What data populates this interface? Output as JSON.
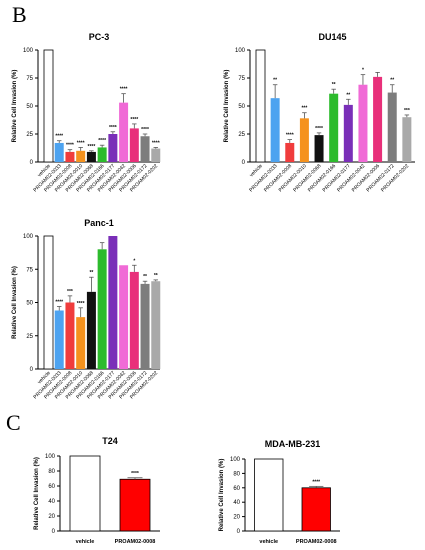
{
  "panel_labels": [
    "B",
    "C"
  ],
  "chart_data": [
    {
      "type": "bar",
      "title": "PC-3",
      "ylabel": "Relative Cell Invasion (%)",
      "ylim": [
        0,
        100
      ],
      "yticks": [
        0,
        25,
        50,
        75,
        100
      ],
      "categories": [
        "vehicle",
        "PROAM02-0033",
        "PROAM02-0008",
        "PROAM02-0010",
        "PROAM02-0068",
        "PROAM02-0166",
        "PROAM02-0177",
        "PROAM02-0042",
        "PROAM02-0006",
        "PROAM02-0172",
        "PROAM02-0202"
      ],
      "values": [
        100,
        17,
        9,
        10,
        9,
        13,
        25,
        53,
        30,
        23,
        12
      ],
      "errors": [
        0,
        2,
        2,
        3,
        1,
        2,
        2,
        8,
        4,
        2,
        1
      ],
      "significance": [
        "",
        "****",
        "****",
        "****",
        "****",
        "****",
        "****",
        "****",
        "****",
        "****",
        "****"
      ],
      "colors": [
        "#ffffff",
        "#4da3f0",
        "#f03c3c",
        "#f5921e",
        "#111111",
        "#2dbb2d",
        "#7a2fb8",
        "#f06ad6",
        "#e8307a",
        "#7d7d7d",
        "#a9a9a9"
      ]
    },
    {
      "type": "bar",
      "title": "DU145",
      "ylabel": "Relative Cell Invasion (%)",
      "ylim": [
        0,
        100
      ],
      "yticks": [
        0,
        25,
        50,
        75,
        100
      ],
      "categories": [
        "vehicle",
        "PROAM02-0033",
        "PROAM02-0008",
        "PROAM02-0010",
        "PROAM02-0068",
        "PROAM02-0166",
        "PROAM02-0177",
        "PROAM02-0042",
        "PROAM02-0006",
        "PROAM02-0172",
        "PROAM02-0202"
      ],
      "values": [
        100,
        57,
        17,
        39,
        24,
        61,
        51,
        69,
        76,
        62,
        40
      ],
      "errors": [
        0,
        12,
        3,
        5,
        2,
        4,
        5,
        9,
        4,
        7,
        2
      ],
      "significance": [
        "",
        "**",
        "****",
        "***",
        "****",
        "**",
        "**",
        "*",
        "",
        "**",
        "***"
      ],
      "colors": [
        "#ffffff",
        "#4da3f0",
        "#f03c3c",
        "#f5921e",
        "#111111",
        "#2dbb2d",
        "#7a2fb8",
        "#f06ad6",
        "#e8307a",
        "#7d7d7d",
        "#a9a9a9"
      ]
    },
    {
      "type": "bar",
      "title": "Panc-1",
      "ylabel": "Relative Cell Invasion (%)",
      "ylim": [
        0,
        100
      ],
      "yticks": [
        0,
        25,
        50,
        75,
        100
      ],
      "categories": [
        "vehicle",
        "PROAM02-0033",
        "PROAM02-0008",
        "PROAM02-0010",
        "PROAM02-0068",
        "PROAM02-0166",
        "PROAM02-0177",
        "PROAM02-0042",
        "PROAM02-0006",
        "PROAM02-0172",
        "PROAM02-0202"
      ],
      "values": [
        100,
        44,
        50,
        39,
        58,
        90,
        100,
        78,
        73,
        64,
        66
      ],
      "errors": [
        0,
        3,
        5,
        7,
        11,
        5,
        0,
        0,
        5,
        2,
        1
      ],
      "significance": [
        "",
        "****",
        "***",
        "****",
        "**",
        "",
        "",
        "",
        "*",
        "**",
        "**"
      ],
      "colors": [
        "#ffffff",
        "#4da3f0",
        "#f03c3c",
        "#f5921e",
        "#111111",
        "#2dbb2d",
        "#7a2fb8",
        "#f06ad6",
        "#e8307a",
        "#7d7d7d",
        "#a9a9a9"
      ]
    },
    {
      "type": "bar",
      "title": "T24",
      "ylabel": "Relative Cell Invasion (%)",
      "ylim": [
        0,
        100
      ],
      "yticks": [
        0,
        20,
        40,
        60,
        80,
        100
      ],
      "categories": [
        "vehicle",
        "PROAM02-0008"
      ],
      "values": [
        100,
        69
      ],
      "errors": [
        0,
        2
      ],
      "significance": [
        "",
        "****"
      ],
      "colors": [
        "#ffffff",
        "#ff0000"
      ]
    },
    {
      "type": "bar",
      "title": "MDA-MB-231",
      "ylabel": "Relative Cell Invasion (%)",
      "ylim": [
        0,
        100
      ],
      "yticks": [
        0,
        20,
        40,
        60,
        80,
        100
      ],
      "categories": [
        "vehicle",
        "PROAM02-0008"
      ],
      "values": [
        100,
        60
      ],
      "errors": [
        0,
        2
      ],
      "significance": [
        "",
        "****"
      ],
      "colors": [
        "#ffffff",
        "#ff0000"
      ]
    }
  ]
}
